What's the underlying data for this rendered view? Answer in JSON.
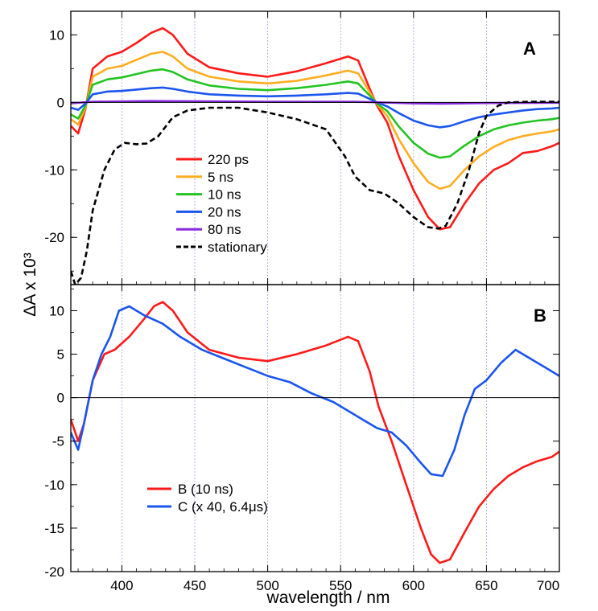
{
  "chart_data": [
    {
      "panel": "A",
      "type": "line",
      "xlabel": "wavelength / nm",
      "ylabel": "ΔA x 10³",
      "xlim": [
        365,
        700
      ],
      "ylim": [
        -27,
        13.5
      ],
      "yticks": [
        -20,
        -10,
        0,
        10
      ],
      "ytick_labels": [
        "-20",
        "-10",
        "0",
        "10"
      ],
      "xticks": [
        400,
        450,
        500,
        550,
        600,
        650,
        700
      ],
      "vertical_gridlines": [
        400,
        450,
        500,
        550,
        600,
        650
      ],
      "zero_line": true,
      "legend": {
        "placement": "lower-left"
      },
      "series": [
        {
          "name": "220 ps",
          "color": "#ff1a1a",
          "dash": false,
          "points": [
            [
              365,
              -3.5
            ],
            [
              370,
              -4.6
            ],
            [
              375,
              -1
            ],
            [
              380,
              5
            ],
            [
              390,
              6.8
            ],
            [
              400,
              7.5
            ],
            [
              410,
              8.8
            ],
            [
              420,
              10.3
            ],
            [
              428,
              11
            ],
            [
              435,
              10
            ],
            [
              445,
              7.2
            ],
            [
              460,
              5.2
            ],
            [
              480,
              4.3
            ],
            [
              500,
              3.8
            ],
            [
              520,
              4.6
            ],
            [
              540,
              5.8
            ],
            [
              555,
              6.8
            ],
            [
              562,
              6.2
            ],
            [
              570,
              2
            ],
            [
              575,
              -0.5
            ],
            [
              582,
              -3
            ],
            [
              590,
              -8
            ],
            [
              600,
              -13
            ],
            [
              610,
              -17
            ],
            [
              618,
              -18.8
            ],
            [
              625,
              -18.5
            ],
            [
              635,
              -15
            ],
            [
              645,
              -12
            ],
            [
              655,
              -10
            ],
            [
              665,
              -9
            ],
            [
              675,
              -7.5
            ],
            [
              685,
              -7.2
            ],
            [
              695,
              -6.5
            ],
            [
              700,
              -6
            ]
          ]
        },
        {
          "name": "5 ns",
          "color": "#ffad1f",
          "dash": false,
          "points": [
            [
              365,
              -2.5
            ],
            [
              370,
              -3.3
            ],
            [
              375,
              -0.8
            ],
            [
              380,
              3.8
            ],
            [
              390,
              5
            ],
            [
              400,
              5.4
            ],
            [
              410,
              6.3
            ],
            [
              420,
              7.2
            ],
            [
              428,
              7.5
            ],
            [
              435,
              6.8
            ],
            [
              445,
              5
            ],
            [
              460,
              3.8
            ],
            [
              480,
              3.1
            ],
            [
              500,
              2.8
            ],
            [
              520,
              3.2
            ],
            [
              540,
              4
            ],
            [
              555,
              4.7
            ],
            [
              562,
              4.3
            ],
            [
              570,
              1.5
            ],
            [
              575,
              -0.3
            ],
            [
              582,
              -2
            ],
            [
              590,
              -5.5
            ],
            [
              600,
              -9
            ],
            [
              610,
              -11.8
            ],
            [
              618,
              -12.8
            ],
            [
              625,
              -12.4
            ],
            [
              635,
              -10
            ],
            [
              645,
              -8
            ],
            [
              655,
              -6.6
            ],
            [
              665,
              -5.6
            ],
            [
              675,
              -5
            ],
            [
              685,
              -4.6
            ],
            [
              695,
              -4.3
            ],
            [
              700,
              -4
            ]
          ]
        },
        {
          "name": "10 ns",
          "color": "#22c422",
          "dash": false,
          "points": [
            [
              365,
              -1.8
            ],
            [
              370,
              -2.4
            ],
            [
              375,
              -0.5
            ],
            [
              380,
              2.6
            ],
            [
              390,
              3.4
            ],
            [
              400,
              3.7
            ],
            [
              410,
              4.2
            ],
            [
              420,
              4.7
            ],
            [
              428,
              4.9
            ],
            [
              435,
              4.5
            ],
            [
              445,
              3.4
            ],
            [
              460,
              2.5
            ],
            [
              480,
              2
            ],
            [
              500,
              1.8
            ],
            [
              520,
              2.1
            ],
            [
              540,
              2.6
            ],
            [
              555,
              3.1
            ],
            [
              562,
              2.8
            ],
            [
              570,
              1
            ],
            [
              575,
              -0.2
            ],
            [
              582,
              -1.3
            ],
            [
              590,
              -3.6
            ],
            [
              600,
              -6
            ],
            [
              610,
              -7.6
            ],
            [
              618,
              -8.2
            ],
            [
              625,
              -8
            ],
            [
              635,
              -6.4
            ],
            [
              645,
              -5
            ],
            [
              655,
              -4
            ],
            [
              665,
              -3.4
            ],
            [
              675,
              -3
            ],
            [
              685,
              -2.7
            ],
            [
              695,
              -2.5
            ],
            [
              700,
              -2.3
            ]
          ]
        },
        {
          "name": "20 ns",
          "color": "#1a55ee",
          "dash": false,
          "points": [
            [
              365,
              -0.8
            ],
            [
              370,
              -1.1
            ],
            [
              375,
              -0.2
            ],
            [
              380,
              1.2
            ],
            [
              390,
              1.6
            ],
            [
              400,
              1.7
            ],
            [
              410,
              1.9
            ],
            [
              420,
              2.1
            ],
            [
              428,
              2.2
            ],
            [
              435,
              2
            ],
            [
              445,
              1.6
            ],
            [
              460,
              1.2
            ],
            [
              480,
              1
            ],
            [
              500,
              0.9
            ],
            [
              520,
              1
            ],
            [
              540,
              1.2
            ],
            [
              555,
              1.4
            ],
            [
              562,
              1.3
            ],
            [
              570,
              0.5
            ],
            [
              575,
              0
            ],
            [
              582,
              -0.6
            ],
            [
              590,
              -1.6
            ],
            [
              600,
              -2.7
            ],
            [
              610,
              -3.4
            ],
            [
              618,
              -3.7
            ],
            [
              625,
              -3.5
            ],
            [
              635,
              -2.8
            ],
            [
              645,
              -2.2
            ],
            [
              655,
              -1.8
            ],
            [
              665,
              -1.5
            ],
            [
              675,
              -1.2
            ],
            [
              685,
              -1
            ],
            [
              695,
              -0.9
            ],
            [
              700,
              -0.8
            ]
          ]
        },
        {
          "name": "80 ns",
          "color": "#8a2be2",
          "dash": false,
          "points": [
            [
              365,
              -0.15
            ],
            [
              380,
              0.1
            ],
            [
              420,
              0.2
            ],
            [
              500,
              0.1
            ],
            [
              560,
              0.1
            ],
            [
              600,
              -0.15
            ],
            [
              620,
              -0.2
            ],
            [
              650,
              -0.1
            ],
            [
              700,
              -0.05
            ]
          ]
        },
        {
          "name": "stationary",
          "color": "#000000",
          "dash": true,
          "points": [
            [
              365,
              -25
            ],
            [
              368,
              -27
            ],
            [
              372,
              -26
            ],
            [
              376,
              -22
            ],
            [
              380,
              -16
            ],
            [
              388,
              -10
            ],
            [
              395,
              -7
            ],
            [
              402,
              -6
            ],
            [
              410,
              -6.2
            ],
            [
              417,
              -6.1
            ],
            [
              425,
              -5
            ],
            [
              435,
              -2.2
            ],
            [
              445,
              -1.2
            ],
            [
              460,
              -0.8
            ],
            [
              480,
              -0.8
            ],
            [
              500,
              -1.5
            ],
            [
              520,
              -2.5
            ],
            [
              540,
              -4
            ],
            [
              553,
              -8
            ],
            [
              560,
              -11
            ],
            [
              570,
              -13
            ],
            [
              580,
              -13.5
            ],
            [
              590,
              -15
            ],
            [
              600,
              -17
            ],
            [
              610,
              -18.5
            ],
            [
              617,
              -18.7
            ],
            [
              622,
              -18.3
            ],
            [
              630,
              -15
            ],
            [
              638,
              -10
            ],
            [
              645,
              -4.5
            ],
            [
              650,
              -2
            ],
            [
              658,
              -0.5
            ],
            [
              665,
              0
            ],
            [
              680,
              0.1
            ],
            [
              700,
              0.1
            ]
          ]
        }
      ]
    },
    {
      "panel": "B",
      "type": "line",
      "xlabel": "wavelength / nm",
      "ylabel": "ΔA x 10³",
      "xlim": [
        365,
        700
      ],
      "ylim": [
        -20,
        13
      ],
      "yticks": [
        -20,
        -15,
        -10,
        -5,
        0,
        5,
        10
      ],
      "ytick_labels": [
        "-20",
        "-15",
        "-10",
        "-5",
        "0",
        "5",
        "10"
      ],
      "xticks": [
        400,
        450,
        500,
        550,
        600,
        650,
        700
      ],
      "xtick_labels": [
        "400",
        "450",
        "500",
        "550",
        "600",
        "650",
        "700"
      ],
      "vertical_gridlines": [
        400,
        450,
        500,
        550,
        600,
        650
      ],
      "zero_line": true,
      "legend": {
        "placement": "lower-left"
      },
      "series": [
        {
          "name": "B (10 ns)",
          "color": "#ff1a1a",
          "dash": false,
          "points": [
            [
              365,
              -2.5
            ],
            [
              370,
              -5
            ],
            [
              374,
              -3
            ],
            [
              380,
              2
            ],
            [
              388,
              5
            ],
            [
              395,
              5.5
            ],
            [
              405,
              7
            ],
            [
              415,
              9
            ],
            [
              422,
              10.5
            ],
            [
              428,
              11
            ],
            [
              435,
              10
            ],
            [
              445,
              7.5
            ],
            [
              460,
              5.5
            ],
            [
              480,
              4.6
            ],
            [
              500,
              4.2
            ],
            [
              520,
              5
            ],
            [
              540,
              6
            ],
            [
              555,
              7
            ],
            [
              562,
              6.5
            ],
            [
              570,
              3
            ],
            [
              576,
              -1
            ],
            [
              585,
              -5
            ],
            [
              595,
              -10
            ],
            [
              605,
              -15
            ],
            [
              612,
              -18
            ],
            [
              618,
              -19
            ],
            [
              625,
              -18.6
            ],
            [
              635,
              -15.5
            ],
            [
              645,
              -12.5
            ],
            [
              655,
              -10.5
            ],
            [
              665,
              -9
            ],
            [
              675,
              -8
            ],
            [
              685,
              -7.3
            ],
            [
              695,
              -6.8
            ],
            [
              700,
              -6.2
            ]
          ]
        },
        {
          "name": "C (x 40, 6.4μs)",
          "color": "#1a55ee",
          "dash": false,
          "points": [
            [
              365,
              -4
            ],
            [
              370,
              -6
            ],
            [
              374,
              -3
            ],
            [
              380,
              2
            ],
            [
              386,
              5
            ],
            [
              392,
              7
            ],
            [
              398,
              10
            ],
            [
              405,
              10.5
            ],
            [
              415,
              9.5
            ],
            [
              428,
              8.5
            ],
            [
              440,
              7
            ],
            [
              455,
              5.5
            ],
            [
              470,
              4.5
            ],
            [
              485,
              3.5
            ],
            [
              500,
              2.5
            ],
            [
              515,
              1.8
            ],
            [
              530,
              0.5
            ],
            [
              545,
              -0.5
            ],
            [
              555,
              -1.5
            ],
            [
              565,
              -2.5
            ],
            [
              575,
              -3.5
            ],
            [
              585,
              -4
            ],
            [
              595,
              -5.5
            ],
            [
              605,
              -7.5
            ],
            [
              612,
              -8.8
            ],
            [
              620,
              -9
            ],
            [
              628,
              -6
            ],
            [
              635,
              -2
            ],
            [
              642,
              1
            ],
            [
              650,
              2
            ],
            [
              660,
              4
            ],
            [
              670,
              5.5
            ],
            [
              680,
              4.5
            ],
            [
              690,
              3.5
            ],
            [
              700,
              2.5
            ]
          ]
        }
      ]
    }
  ]
}
